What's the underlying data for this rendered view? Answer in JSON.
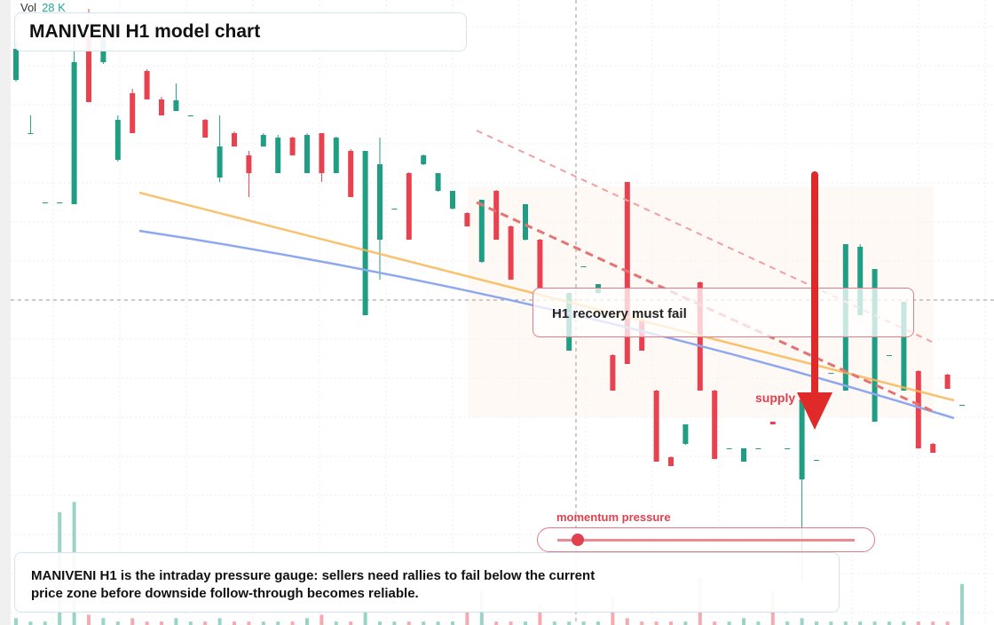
{
  "chart_data": {
    "type": "candlestick",
    "title": "MANIVENI H1 model chart",
    "volume_label": "Vol",
    "volume_value": "28 K",
    "annotation": "H1 recovery must fail",
    "zone_label": "supply zone",
    "gauge_label": "momentum pressure",
    "caption": "MANIVENI H1 is the intraday pressure gauge: sellers need rallies to fail below the current price zone before downside follow-through becomes reliable.",
    "up_color": "#1f9e84",
    "down_color": "#e8414f",
    "ylim": [
      0,
      70.4
    ],
    "vlim": [
      0,
      40
    ],
    "candles": [
      [
        61.4,
        65.9,
        61.2,
        64.9
      ],
      [
        55.4,
        57.4,
        55.4,
        55.4
      ],
      [
        47.6,
        47.6,
        47.6,
        47.6
      ],
      [
        47.6,
        47.6,
        47.6,
        47.6
      ],
      [
        47.4,
        66.4,
        47.4,
        63.4
      ],
      [
        66.4,
        69.4,
        58.9,
        58.9
      ],
      [
        63.4,
        66.4,
        63.2,
        65.9
      ],
      [
        52.4,
        57.4,
        52.2,
        56.9
      ],
      [
        59.9,
        60.4,
        55.4,
        55.4
      ],
      [
        62.4,
        62.6,
        59.2,
        59.2
      ],
      [
        59.2,
        59.5,
        57.4,
        57.4
      ],
      [
        57.9,
        61.0,
        57.9,
        59.1
      ],
      [
        57.4,
        57.4,
        57.4,
        57.4
      ],
      [
        56.9,
        57.0,
        54.9,
        54.9
      ],
      [
        50.4,
        57.4,
        49.9,
        53.9
      ],
      [
        55.4,
        55.6,
        53.9,
        53.9
      ],
      [
        52.9,
        53.4,
        48.2,
        50.9
      ],
      [
        53.9,
        55.4,
        53.9,
        55.2
      ],
      [
        50.9,
        55.2,
        50.9,
        54.9
      ],
      [
        54.9,
        55.0,
        52.9,
        52.9
      ],
      [
        50.9,
        55.4,
        50.9,
        55.2
      ],
      [
        55.4,
        55.4,
        49.9,
        50.9
      ],
      [
        50.9,
        55.0,
        50.9,
        54.9
      ],
      [
        53.4,
        53.6,
        48.2,
        48.2
      ],
      [
        34.9,
        53.4,
        34.9,
        53.4
      ],
      [
        43.4,
        54.9,
        38.9,
        51.9
      ],
      [
        46.9,
        46.9,
        46.9,
        46.9
      ],
      [
        50.9,
        51.0,
        43.4,
        43.4
      ],
      [
        51.9,
        53.0,
        51.8,
        52.9
      ],
      [
        48.9,
        50.9,
        48.8,
        50.9
      ],
      [
        46.9,
        48.9,
        46.8,
        48.9
      ],
      [
        46.4,
        46.5,
        44.9,
        44.9
      ],
      [
        40.9,
        47.9,
        40.8,
        47.9
      ],
      [
        48.9,
        49.0,
        43.4,
        43.4
      ],
      [
        44.9,
        45.0,
        38.9,
        38.9
      ],
      [
        43.4,
        47.4,
        43.3,
        47.4
      ],
      [
        43.4,
        43.5,
        37.9,
        37.9
      ],
      [
        34.9,
        34.9,
        34.9,
        34.9
      ],
      [
        30.9,
        37.4,
        30.9,
        37.4
      ],
      [
        40.4,
        40.4,
        40.4,
        40.4
      ],
      [
        37.4,
        38.4,
        37.3,
        38.4
      ],
      [
        30.4,
        30.5,
        26.4,
        26.4
      ],
      [
        49.9,
        49.9,
        29.4,
        29.4
      ],
      [
        34.4,
        34.5,
        30.9,
        30.9
      ],
      [
        26.4,
        26.5,
        18.4,
        18.4
      ],
      [
        18.9,
        19.0,
        17.9,
        17.9
      ],
      [
        20.4,
        22.6,
        20.3,
        22.6
      ],
      [
        38.6,
        38.7,
        26.4,
        26.4
      ],
      [
        26.4,
        26.5,
        18.7,
        18.7
      ],
      [
        19.9,
        19.9,
        19.9,
        19.9
      ],
      [
        18.4,
        19.9,
        18.4,
        19.9
      ],
      [
        19.9,
        19.9,
        19.9,
        19.9
      ],
      [
        22.9,
        22.9,
        22.6,
        22.6
      ],
      [
        19.9,
        19.9,
        19.9,
        19.9
      ],
      [
        16.4,
        25.4,
        4.9,
        25.4
      ],
      [
        18.6,
        18.6,
        18.6,
        18.6
      ],
      [
        28.4,
        28.4,
        28.4,
        28.4
      ],
      [
        26.4,
        42.9,
        26.4,
        42.9
      ],
      [
        34.9,
        42.9,
        34.9,
        42.6
      ],
      [
        22.9,
        40.1,
        22.9,
        40.1
      ],
      [
        30.4,
        30.4,
        30.4,
        30.4
      ],
      [
        26.4,
        36.4,
        26.4,
        36.4
      ],
      [
        28.6,
        28.7,
        19.9,
        19.9
      ],
      [
        20.4,
        20.5,
        19.4,
        19.4
      ],
      [
        28.2,
        28.3,
        26.6,
        26.6
      ],
      [
        24.8,
        24.8,
        24.8,
        24.8
      ]
    ],
    "volume": [
      2,
      1,
      1,
      33,
      36,
      3,
      2,
      1,
      2,
      1,
      1,
      2,
      1,
      1,
      2,
      1,
      1,
      1,
      1,
      1,
      2,
      3,
      1,
      1,
      4,
      1,
      1,
      1,
      1,
      1,
      1,
      4,
      10,
      1,
      1,
      1,
      6,
      1,
      1,
      1,
      1,
      8,
      2,
      1,
      1,
      1,
      1,
      14,
      1,
      1,
      2,
      1,
      10,
      1,
      2,
      1,
      1,
      1,
      1,
      1,
      1,
      1,
      1,
      1,
      1,
      12
    ]
  }
}
